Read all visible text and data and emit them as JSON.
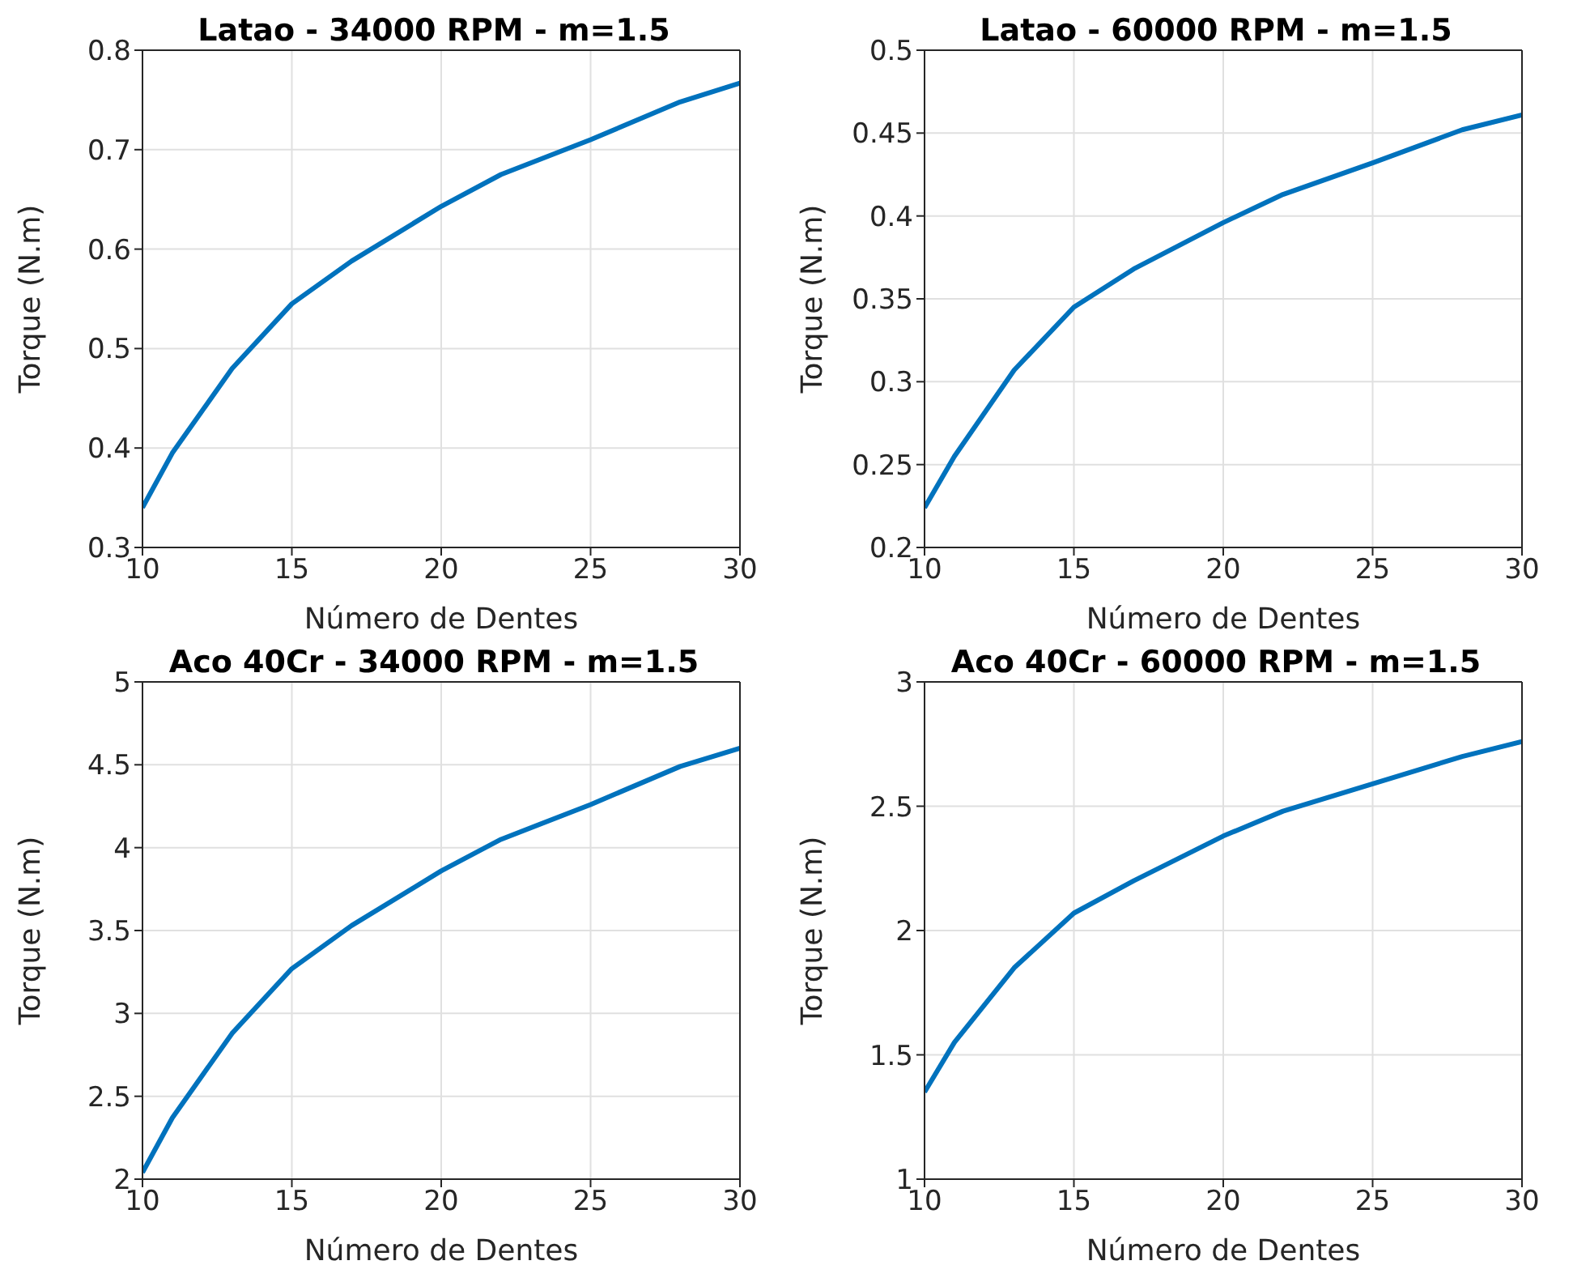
{
  "chart_data": [
    {
      "type": "line",
      "title": "Latao - 34000 RPM - m=1.5",
      "xlabel": "Número de Dentes",
      "ylabel": "Torque (N.m)",
      "x": [
        10,
        11,
        13,
        15,
        17,
        20,
        22,
        25,
        28,
        30
      ],
      "series": [
        {
          "color": "#0072bd",
          "values": [
            0.34,
            0.395,
            0.48,
            0.545,
            0.588,
            0.643,
            0.675,
            0.71,
            0.748,
            0.767
          ]
        }
      ],
      "xlim": [
        10,
        30
      ],
      "xticks": [
        10,
        15,
        20,
        25,
        30
      ],
      "ylim": [
        0.3,
        0.8
      ],
      "yticks": [
        0.3,
        0.4,
        0.5,
        0.6,
        0.7,
        0.8
      ],
      "grid": true,
      "legend": false,
      "marker": "none",
      "line_style": "solid"
    },
    {
      "type": "line",
      "title": "Latao - 60000 RPM - m=1.5",
      "xlabel": "Número de Dentes",
      "ylabel": "Torque (N.m)",
      "x": [
        10,
        11,
        13,
        15,
        17,
        20,
        22,
        25,
        28,
        30
      ],
      "series": [
        {
          "color": "#0072bd",
          "values": [
            0.224,
            0.255,
            0.307,
            0.345,
            0.368,
            0.396,
            0.413,
            0.432,
            0.452,
            0.461
          ]
        }
      ],
      "xlim": [
        10,
        30
      ],
      "xticks": [
        10,
        15,
        20,
        25,
        30
      ],
      "ylim": [
        0.2,
        0.5
      ],
      "yticks": [
        0.2,
        0.25,
        0.3,
        0.35,
        0.4,
        0.45,
        0.5
      ],
      "grid": true,
      "legend": false,
      "marker": "none",
      "line_style": "solid"
    },
    {
      "type": "line",
      "title": "Aco 40Cr - 34000 RPM - m=1.5",
      "xlabel": "Número de Dentes",
      "ylabel": "Torque (N.m)",
      "x": [
        10,
        11,
        13,
        15,
        17,
        20,
        22,
        25,
        28,
        30
      ],
      "series": [
        {
          "color": "#0072bd",
          "values": [
            2.04,
            2.37,
            2.88,
            3.27,
            3.53,
            3.86,
            4.05,
            4.26,
            4.49,
            4.6
          ]
        }
      ],
      "xlim": [
        10,
        30
      ],
      "xticks": [
        10,
        15,
        20,
        25,
        30
      ],
      "ylim": [
        2,
        5
      ],
      "yticks": [
        2,
        2.5,
        3,
        3.5,
        4,
        4.5,
        5
      ],
      "grid": true,
      "legend": false,
      "marker": "none",
      "line_style": "solid"
    },
    {
      "type": "line",
      "title": "Aco 40Cr - 60000 RPM - m=1.5",
      "xlabel": "Número de Dentes",
      "ylabel": "Torque (N.m)",
      "x": [
        10,
        11,
        13,
        15,
        17,
        20,
        22,
        25,
        28,
        30
      ],
      "series": [
        {
          "color": "#0072bd",
          "values": [
            1.35,
            1.55,
            1.85,
            2.07,
            2.2,
            2.38,
            2.48,
            2.59,
            2.7,
            2.76
          ]
        }
      ],
      "xlim": [
        10,
        30
      ],
      "xticks": [
        10,
        15,
        20,
        25,
        30
      ],
      "ylim": [
        1,
        3
      ],
      "yticks": [
        1,
        1.5,
        2,
        2.5,
        3
      ],
      "grid": true,
      "legend": false,
      "marker": "none",
      "line_style": "solid"
    }
  ]
}
